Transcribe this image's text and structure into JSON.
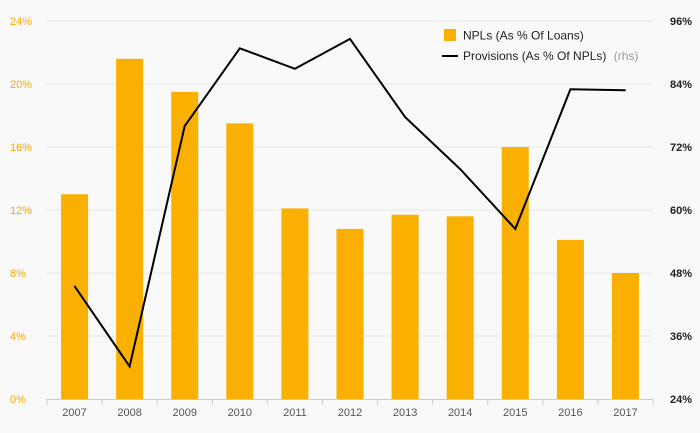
{
  "chart_data": {
    "type": "bar+line",
    "categories": [
      "2007",
      "2008",
      "2009",
      "2010",
      "2011",
      "2012",
      "2013",
      "2014",
      "2015",
      "2016",
      "2017"
    ],
    "series": [
      {
        "name": "NPLs (As % Of Loans)",
        "type": "bar",
        "axis": "left",
        "color": "#f9b000",
        "values": [
          13.0,
          21.6,
          19.5,
          17.5,
          12.1,
          10.8,
          11.7,
          11.6,
          16.0,
          10.1,
          8.0
        ]
      },
      {
        "name": "Provisions (As % Of NPLs)",
        "type": "line",
        "axis": "right",
        "color": "#000000",
        "values": [
          45.5,
          30.2,
          76.0,
          90.8,
          86.9,
          92.6,
          77.7,
          67.8,
          56.4,
          83.0,
          82.8
        ]
      }
    ],
    "legend": {
      "position": "top-right",
      "items": [
        {
          "label": "NPLs (As % Of Loans)",
          "suffix": ""
        },
        {
          "label": "Provisions (As % Of NPLs)",
          "suffix": "(rhs)"
        }
      ]
    },
    "y_left": {
      "min": 0,
      "max": 24,
      "step": 4,
      "tick_labels": [
        "0%",
        "4%",
        "8%",
        "12%",
        "16%",
        "20%",
        "24%"
      ],
      "color": "#f5a800"
    },
    "y_right": {
      "min": 24,
      "max": 96,
      "step": 12,
      "tick_labels": [
        "24%",
        "36%",
        "48%",
        "60%",
        "72%",
        "84%",
        "96%"
      ],
      "color": "#222222"
    },
    "grid": true
  }
}
